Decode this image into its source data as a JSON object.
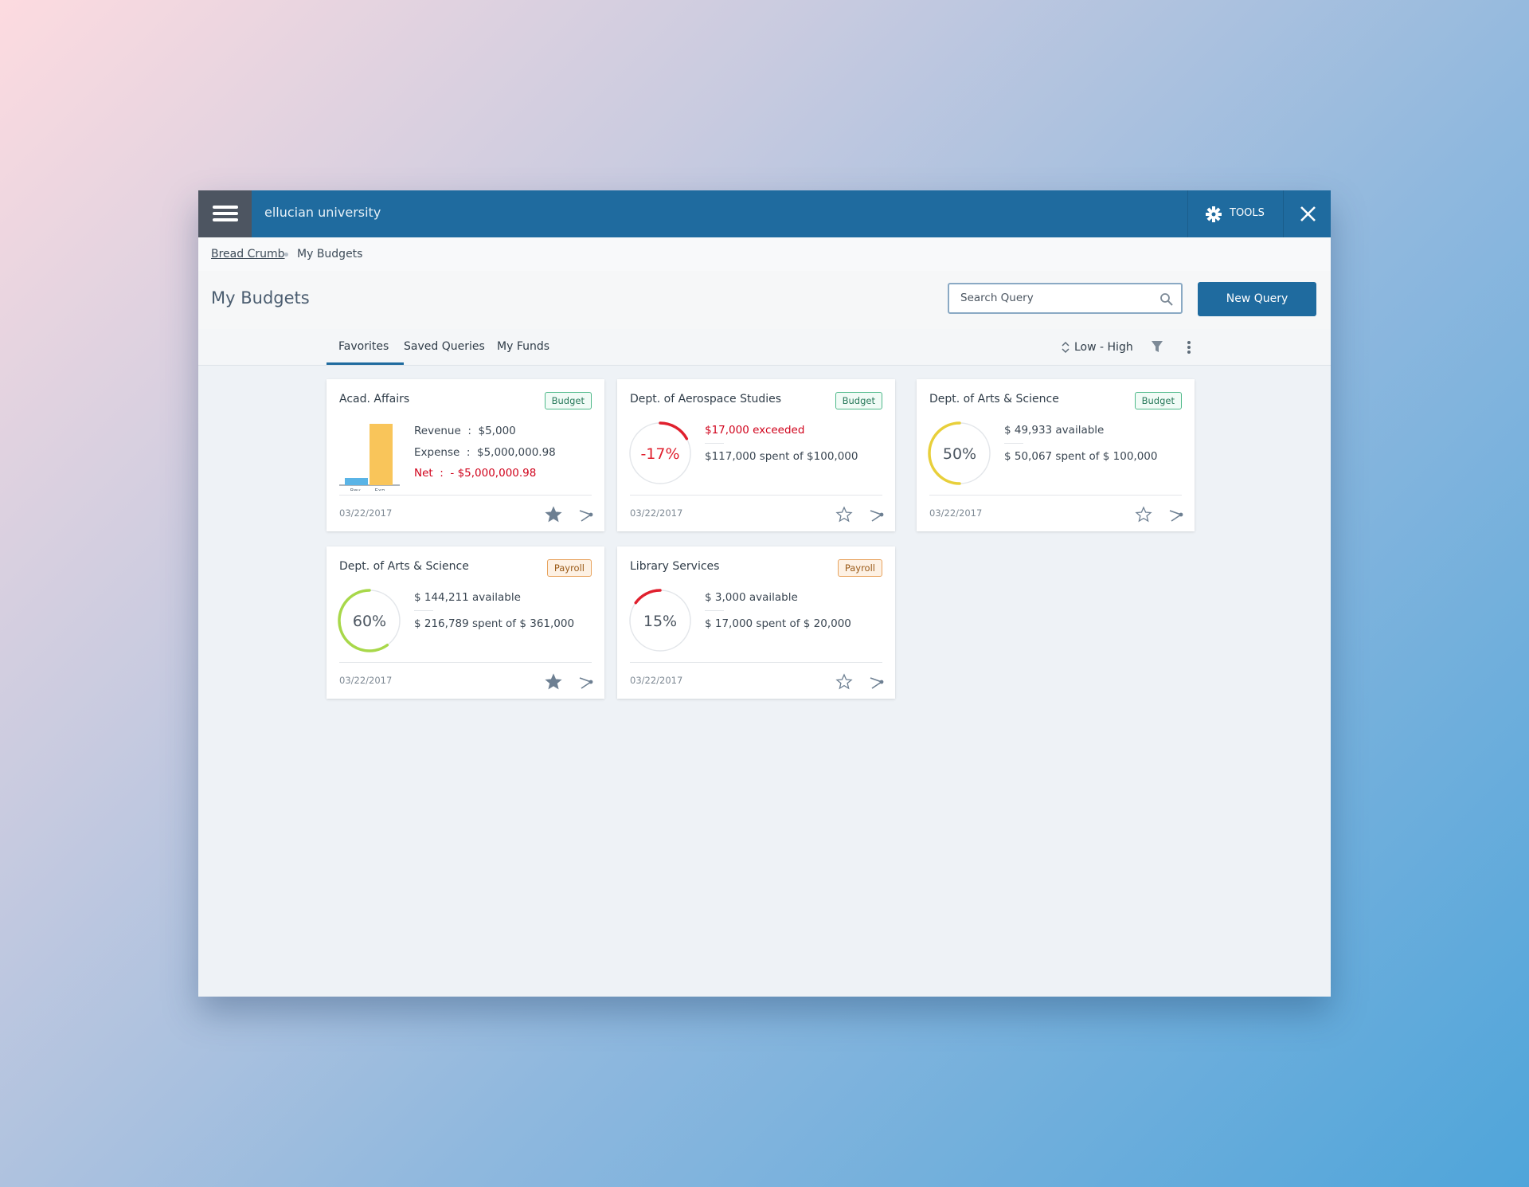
{
  "header": {
    "brand": "ellucian university",
    "tools": "TOOLS"
  },
  "breadcrumb": [
    "Bread Crumb",
    "My Budgets"
  ],
  "page_title": "My Budgets",
  "search_placeholder": "Search Query",
  "new_query": "New Query",
  "tabs": [
    "Favorites",
    "Saved Queries",
    "My Funds"
  ],
  "sort": "Low - High",
  "cards": [
    {
      "title": "Acad. Affairs",
      "tag": "Budget",
      "tag_style": "budget",
      "chart_labels": [
        "Rev.",
        "Exp."
      ],
      "lines": [
        {
          "text": "Revenue  :  $5,000"
        },
        {
          "text": "Expense  :  $5,000,000.98"
        },
        {
          "text": "Net  :  - $5,000,000.98",
          "color": "#d0021b"
        }
      ],
      "date": "03/22/2017",
      "favorite": true
    },
    {
      "title": "Dept. of Aerospace Studies",
      "tag": "Budget",
      "tag_style": "budget",
      "gauge": {
        "value": -17,
        "label": "-17%",
        "color": "#e0202e"
      },
      "lines": [
        {
          "text": "$17,000 exceeded",
          "color": "#d0021b"
        },
        {
          "text": "$117,000 spent of $100,000"
        }
      ],
      "date": "03/22/2017",
      "favorite": false
    },
    {
      "title": "Dept. of Arts & Science",
      "tag": "Budget",
      "tag_style": "budget",
      "gauge": {
        "value": 50,
        "label": "50%",
        "color": "#e8cf3a"
      },
      "lines": [
        {
          "text": "$ 49,933 available"
        },
        {
          "text": "$ 50,067 spent of $ 100,000"
        }
      ],
      "date": "03/22/2017",
      "favorite": false
    },
    {
      "title": "Dept. of Arts & Science",
      "tag": "Payroll",
      "tag_style": "payroll",
      "gauge": {
        "value": 60,
        "label": "60%",
        "color": "#a8d84a"
      },
      "lines": [
        {
          "text": "$ 144,211 available"
        },
        {
          "text": "$ 216,789 spent of $ 361,000"
        }
      ],
      "date": "03/22/2017",
      "favorite": true
    },
    {
      "title": "Library Services",
      "tag": "Payroll",
      "tag_style": "payroll",
      "gauge": {
        "value": 15,
        "label": "15%",
        "color": "#e0202e"
      },
      "lines": [
        {
          "text": "$ 3,000 available"
        },
        {
          "text": "$ 17,000 spent of $ 20,000"
        }
      ],
      "date": "03/22/2017",
      "favorite": false
    }
  ]
}
